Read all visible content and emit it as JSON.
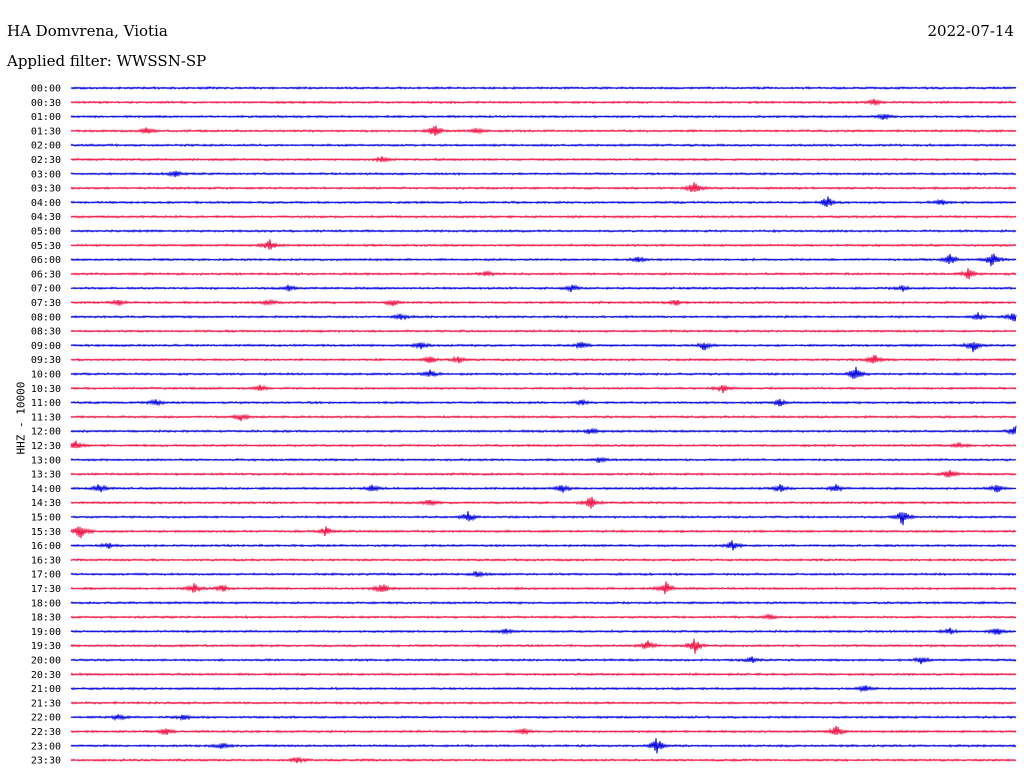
{
  "header": {
    "station": "HA Domvrena, Viotia",
    "date": "2022-07-14",
    "filter": "Applied filter: WWSSN-SP"
  },
  "chart_data": {
    "type": "helicorder",
    "title": "HA Domvrena, Viotia",
    "ylabel": "HHZ - 10000",
    "colors": [
      "#0000dd",
      "#ee1144"
    ],
    "rows": [
      {
        "label": "00:00",
        "events": []
      },
      {
        "label": "00:30",
        "events": [
          {
            "x": 0.85,
            "a": 3
          }
        ]
      },
      {
        "label": "01:00",
        "events": [
          {
            "x": 0.86,
            "a": 3
          }
        ]
      },
      {
        "label": "01:30",
        "events": [
          {
            "x": 0.08,
            "a": 4
          },
          {
            "x": 0.385,
            "a": 7
          },
          {
            "x": 0.43,
            "a": 3
          }
        ]
      },
      {
        "label": "02:00",
        "events": []
      },
      {
        "label": "02:30",
        "events": [
          {
            "x": 0.33,
            "a": 3
          }
        ]
      },
      {
        "label": "03:00",
        "events": [
          {
            "x": 0.11,
            "a": 3
          }
        ]
      },
      {
        "label": "03:30",
        "events": [
          {
            "x": 0.66,
            "a": 8
          }
        ]
      },
      {
        "label": "04:00",
        "events": [
          {
            "x": 0.8,
            "a": 7
          },
          {
            "x": 0.92,
            "a": 3
          }
        ]
      },
      {
        "label": "04:30",
        "events": []
      },
      {
        "label": "05:00",
        "events": []
      },
      {
        "label": "05:30",
        "events": [
          {
            "x": 0.21,
            "a": 6
          }
        ]
      },
      {
        "label": "06:00",
        "events": [
          {
            "x": 0.6,
            "a": 3
          },
          {
            "x": 0.93,
            "a": 6
          },
          {
            "x": 0.975,
            "a": 8
          }
        ]
      },
      {
        "label": "06:30",
        "events": [
          {
            "x": 0.44,
            "a": 3
          },
          {
            "x": 0.95,
            "a": 7
          }
        ]
      },
      {
        "label": "07:00",
        "events": [
          {
            "x": 0.23,
            "a": 3
          },
          {
            "x": 0.53,
            "a": 4
          },
          {
            "x": 0.88,
            "a": 3
          }
        ]
      },
      {
        "label": "07:30",
        "events": [
          {
            "x": 0.05,
            "a": 3
          },
          {
            "x": 0.21,
            "a": 3
          },
          {
            "x": 0.34,
            "a": 4
          },
          {
            "x": 0.64,
            "a": 3
          }
        ]
      },
      {
        "label": "08:00",
        "events": [
          {
            "x": 0.35,
            "a": 3
          },
          {
            "x": 0.96,
            "a": 4
          },
          {
            "x": 0.998,
            "a": 5
          }
        ]
      },
      {
        "label": "08:30",
        "events": []
      },
      {
        "label": "09:00",
        "events": [
          {
            "x": 0.37,
            "a": 5
          },
          {
            "x": 0.54,
            "a": 4
          },
          {
            "x": 0.67,
            "a": 5
          },
          {
            "x": 0.955,
            "a": 7
          }
        ]
      },
      {
        "label": "09:30",
        "events": [
          {
            "x": 0.38,
            "a": 4
          },
          {
            "x": 0.41,
            "a": 4
          },
          {
            "x": 0.85,
            "a": 6
          }
        ]
      },
      {
        "label": "10:00",
        "events": [
          {
            "x": 0.38,
            "a": 4
          },
          {
            "x": 0.83,
            "a": 8
          }
        ]
      },
      {
        "label": "10:30",
        "events": [
          {
            "x": 0.2,
            "a": 3
          },
          {
            "x": 0.69,
            "a": 4
          }
        ]
      },
      {
        "label": "11:00",
        "events": [
          {
            "x": 0.09,
            "a": 3
          },
          {
            "x": 0.54,
            "a": 3
          },
          {
            "x": 0.75,
            "a": 4
          }
        ]
      },
      {
        "label": "11:30",
        "events": [
          {
            "x": 0.18,
            "a": 4
          }
        ]
      },
      {
        "label": "12:00",
        "events": [
          {
            "x": 0.55,
            "a": 3
          },
          {
            "x": 1.0,
            "a": 6
          }
        ]
      },
      {
        "label": "12:30",
        "events": [
          {
            "x": 0.005,
            "a": 6
          },
          {
            "x": 0.94,
            "a": 3
          }
        ]
      },
      {
        "label": "13:00",
        "events": [
          {
            "x": 0.56,
            "a": 3
          }
        ]
      },
      {
        "label": "13:30",
        "events": [
          {
            "x": 0.93,
            "a": 5
          }
        ]
      },
      {
        "label": "14:00",
        "events": [
          {
            "x": 0.03,
            "a": 5
          },
          {
            "x": 0.32,
            "a": 5
          },
          {
            "x": 0.52,
            "a": 4
          },
          {
            "x": 0.75,
            "a": 4
          },
          {
            "x": 0.81,
            "a": 4
          },
          {
            "x": 0.98,
            "a": 4
          }
        ]
      },
      {
        "label": "14:30",
        "events": [
          {
            "x": 0.38,
            "a": 3
          },
          {
            "x": 0.55,
            "a": 7
          }
        ]
      },
      {
        "label": "15:00",
        "events": [
          {
            "x": 0.42,
            "a": 6
          },
          {
            "x": 0.88,
            "a": 9
          }
        ]
      },
      {
        "label": "15:30",
        "events": [
          {
            "x": 0.01,
            "a": 9
          },
          {
            "x": 0.27,
            "a": 5
          }
        ]
      },
      {
        "label": "16:00",
        "events": [
          {
            "x": 0.04,
            "a": 3
          },
          {
            "x": 0.7,
            "a": 6
          }
        ]
      },
      {
        "label": "16:30",
        "events": []
      },
      {
        "label": "17:00",
        "events": [
          {
            "x": 0.43,
            "a": 3
          }
        ]
      },
      {
        "label": "17:30",
        "events": [
          {
            "x": 0.13,
            "a": 5
          },
          {
            "x": 0.16,
            "a": 4
          },
          {
            "x": 0.33,
            "a": 6
          },
          {
            "x": 0.63,
            "a": 7
          }
        ]
      },
      {
        "label": "18:00",
        "events": []
      },
      {
        "label": "18:30",
        "events": [
          {
            "x": 0.74,
            "a": 3
          }
        ]
      },
      {
        "label": "19:00",
        "events": [
          {
            "x": 0.46,
            "a": 3
          },
          {
            "x": 0.93,
            "a": 3
          },
          {
            "x": 0.98,
            "a": 4
          }
        ]
      },
      {
        "label": "19:30",
        "events": [
          {
            "x": 0.61,
            "a": 5
          },
          {
            "x": 0.66,
            "a": 8
          }
        ]
      },
      {
        "label": "20:00",
        "events": [
          {
            "x": 0.72,
            "a": 3
          },
          {
            "x": 0.9,
            "a": 4
          }
        ]
      },
      {
        "label": "20:30",
        "events": []
      },
      {
        "label": "21:00",
        "events": [
          {
            "x": 0.84,
            "a": 4
          }
        ]
      },
      {
        "label": "21:30",
        "events": []
      },
      {
        "label": "22:00",
        "events": [
          {
            "x": 0.05,
            "a": 3
          },
          {
            "x": 0.12,
            "a": 3
          }
        ]
      },
      {
        "label": "22:30",
        "events": [
          {
            "x": 0.1,
            "a": 4
          },
          {
            "x": 0.48,
            "a": 3
          },
          {
            "x": 0.81,
            "a": 6
          }
        ]
      },
      {
        "label": "23:00",
        "events": [
          {
            "x": 0.16,
            "a": 3
          },
          {
            "x": 0.62,
            "a": 9
          }
        ]
      },
      {
        "label": "23:30",
        "events": [
          {
            "x": 0.24,
            "a": 3
          }
        ]
      }
    ]
  }
}
